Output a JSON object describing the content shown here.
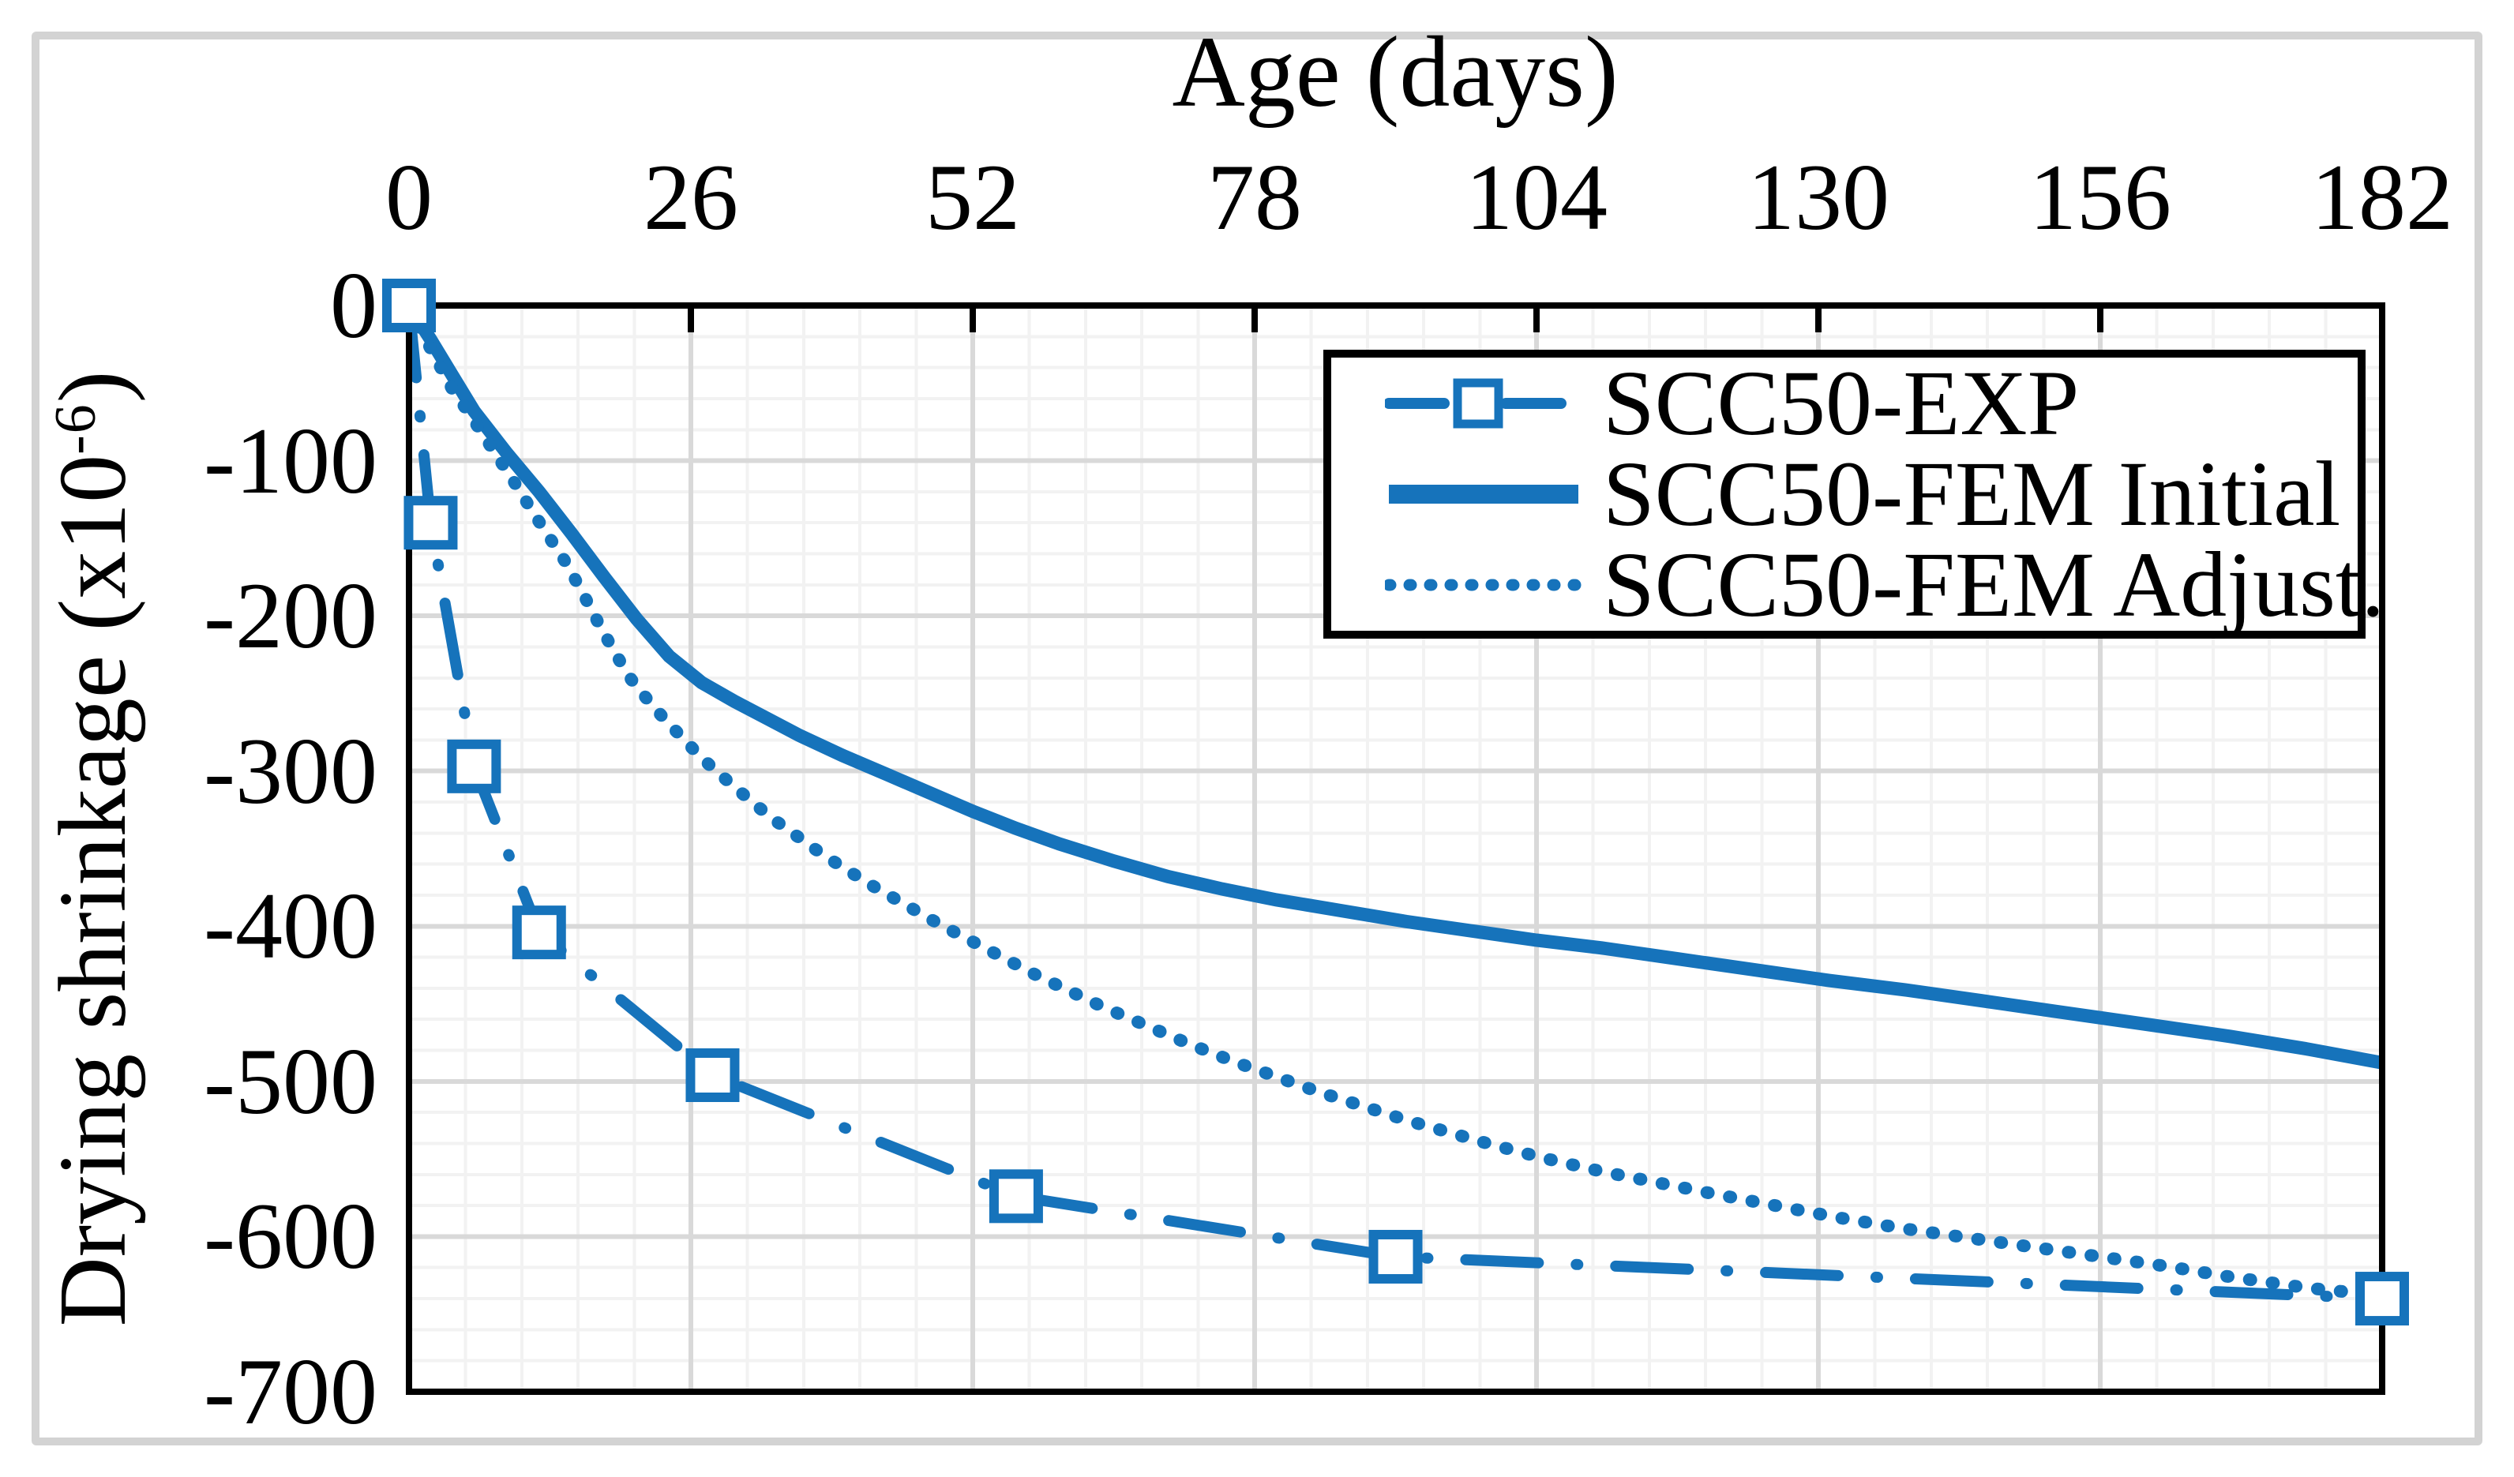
{
  "figure": {
    "background": "#ffffff",
    "outer_border_color": "#d3d3d3",
    "axis_color": "#000000",
    "grid_major_color": "#d9d9d9",
    "grid_minor_color": "#f2f2f2",
    "accent_blue": "#1673bb"
  },
  "chart_data": {
    "type": "line",
    "title": "",
    "xlabel": "Age (days)",
    "ylabel": "Drying shrinkage (x10-6)",
    "ylabel_prefix": "Drying shrinkage (x10",
    "ylabel_sup": "-6",
    "ylabel_suffix": ")",
    "x_axis": {
      "min": 0,
      "max": 182,
      "ticks": [
        0,
        26,
        52,
        78,
        104,
        130,
        156,
        182
      ],
      "tick_labels": [
        "0",
        "26",
        "52",
        "78",
        "104",
        "130",
        "156",
        "182"
      ],
      "minor_step": 5.2,
      "position": "top"
    },
    "y_axis": {
      "min": -700,
      "max": 0,
      "ticks": [
        0,
        -100,
        -200,
        -300,
        -400,
        -500,
        -600,
        -700
      ],
      "tick_labels": [
        "0",
        "-100",
        "-200",
        "-300",
        "-400",
        "-500",
        "-600",
        "-700"
      ],
      "minor_step": 20,
      "position": "left"
    },
    "grid": "on",
    "legend_position": "top-right",
    "series": [
      {
        "name": "SCC50-EXP",
        "style": "dashdot",
        "marker": "square",
        "color": "#1673bb",
        "points": [
          [
            0,
            0
          ],
          [
            2,
            -140
          ],
          [
            6,
            -297
          ],
          [
            12,
            -404
          ],
          [
            28,
            -496
          ],
          [
            56,
            -574
          ],
          [
            91,
            -613
          ],
          [
            182,
            -640
          ]
        ]
      },
      {
        "name": "SCC50-FEM Initial",
        "style": "solid",
        "marker": "none",
        "color": "#1673bb",
        "points": [
          [
            0,
            0
          ],
          [
            2,
            -22
          ],
          [
            4,
            -45
          ],
          [
            6,
            -68
          ],
          [
            9,
            -95
          ],
          [
            12,
            -120
          ],
          [
            15,
            -147
          ],
          [
            18,
            -175
          ],
          [
            21,
            -202
          ],
          [
            24,
            -226
          ],
          [
            27,
            -243
          ],
          [
            30,
            -255
          ],
          [
            33,
            -266
          ],
          [
            36,
            -277
          ],
          [
            40,
            -290
          ],
          [
            44,
            -302
          ],
          [
            48,
            -314
          ],
          [
            52,
            -326
          ],
          [
            56,
            -337
          ],
          [
            60,
            -347
          ],
          [
            65,
            -358
          ],
          [
            70,
            -368
          ],
          [
            75,
            -376
          ],
          [
            80,
            -383
          ],
          [
            86,
            -390
          ],
          [
            92,
            -397
          ],
          [
            98,
            -403
          ],
          [
            104,
            -409
          ],
          [
            110,
            -414
          ],
          [
            117,
            -421
          ],
          [
            124,
            -428
          ],
          [
            131,
            -435
          ],
          [
            138,
            -441
          ],
          [
            145,
            -448
          ],
          [
            152,
            -455
          ],
          [
            160,
            -463
          ],
          [
            168,
            -471
          ],
          [
            175,
            -479
          ],
          [
            182,
            -488
          ]
        ]
      },
      {
        "name": "SCC50-FEM Adjust.",
        "style": "dotted",
        "marker": "none",
        "color": "#1673bb",
        "points": [
          [
            0,
            0
          ],
          [
            1,
            -14
          ],
          [
            2,
            -28
          ],
          [
            3,
            -41
          ],
          [
            4,
            -54
          ],
          [
            5.5,
            -69
          ],
          [
            7,
            -85
          ],
          [
            8.5,
            -101
          ],
          [
            10,
            -117
          ],
          [
            11.5,
            -134
          ],
          [
            13,
            -150
          ],
          [
            14.5,
            -166
          ],
          [
            16,
            -185
          ],
          [
            17.5,
            -205
          ],
          [
            19,
            -224
          ],
          [
            20.5,
            -241
          ],
          [
            22,
            -254
          ],
          [
            23.5,
            -266
          ],
          [
            25,
            -277
          ],
          [
            26.5,
            -288
          ],
          [
            28,
            -298
          ],
          [
            30,
            -310
          ],
          [
            32,
            -322
          ],
          [
            34,
            -333
          ],
          [
            36,
            -343
          ],
          [
            38,
            -353
          ],
          [
            40,
            -362
          ],
          [
            43,
            -375
          ],
          [
            46,
            -387
          ],
          [
            49,
            -399
          ],
          [
            52,
            -410
          ],
          [
            55,
            -421
          ],
          [
            58,
            -432
          ],
          [
            61,
            -442
          ],
          [
            64,
            -452
          ],
          [
            68,
            -464
          ],
          [
            72,
            -476
          ],
          [
            76,
            -487
          ],
          [
            80,
            -497
          ],
          [
            84,
            -507
          ],
          [
            88,
            -516
          ],
          [
            92,
            -525
          ],
          [
            96,
            -533
          ],
          [
            100,
            -541
          ],
          [
            105,
            -550
          ],
          [
            110,
            -558
          ],
          [
            115,
            -565
          ],
          [
            120,
            -572
          ],
          [
            126,
            -580
          ],
          [
            132,
            -588
          ],
          [
            138,
            -595
          ],
          [
            144,
            -601
          ],
          [
            150,
            -607
          ],
          [
            156,
            -613
          ],
          [
            162,
            -619
          ],
          [
            168,
            -626
          ],
          [
            175,
            -633
          ],
          [
            182,
            -638
          ]
        ]
      }
    ]
  }
}
